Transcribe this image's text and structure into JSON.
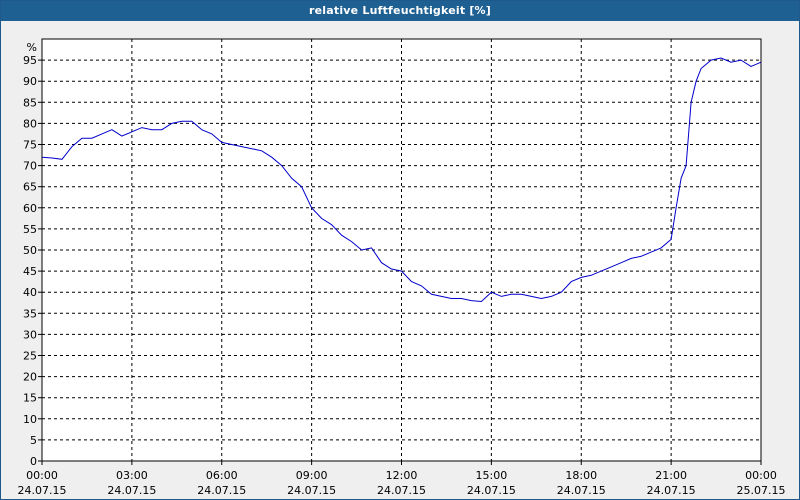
{
  "window": {
    "title": "relative Luftfeuchtigkeit [%]"
  },
  "chart_data": {
    "type": "line",
    "title": "relative Luftfeuchtigkeit [%]",
    "ylabel": "%",
    "xlabel": "",
    "ylim": [
      0,
      100
    ],
    "xlim_hours": [
      0,
      24
    ],
    "grid": true,
    "line_color": "#0000cc",
    "y_ticks": [
      "0",
      "5",
      "10",
      "15",
      "20",
      "25",
      "30",
      "35",
      "40",
      "45",
      "50",
      "55",
      "60",
      "65",
      "70",
      "75",
      "80",
      "85",
      "90",
      "95"
    ],
    "x_ticks": [
      {
        "time": "00:00",
        "date": "24.07.15"
      },
      {
        "time": "03:00",
        "date": "24.07.15"
      },
      {
        "time": "06:00",
        "date": "24.07.15"
      },
      {
        "time": "09:00",
        "date": "24.07.15"
      },
      {
        "time": "12:00",
        "date": "24.07.15"
      },
      {
        "time": "15:00",
        "date": "24.07.15"
      },
      {
        "time": "18:00",
        "date": "24.07.15"
      },
      {
        "time": "21:00",
        "date": "24.07.15"
      },
      {
        "time": "00:00",
        "date": "25.07.15"
      }
    ],
    "series": [
      {
        "x": [
          "00:00",
          "00:20",
          "00:40",
          "01:00",
          "01:20",
          "01:40",
          "02:00",
          "02:20",
          "02:40",
          "03:00",
          "03:20",
          "03:40",
          "04:00",
          "04:20",
          "04:40",
          "05:00",
          "05:20",
          "05:40",
          "06:00",
          "06:20",
          "06:40",
          "07:00",
          "07:20",
          "07:40",
          "08:00",
          "08:20",
          "08:40",
          "09:00",
          "09:20",
          "09:40",
          "10:00",
          "10:20",
          "10:40",
          "11:00",
          "11:20",
          "11:40",
          "12:00",
          "12:20",
          "12:40",
          "13:00",
          "13:20",
          "13:40",
          "14:00",
          "14:20",
          "14:40",
          "15:00",
          "15:20",
          "15:40",
          "16:00",
          "16:20",
          "16:40",
          "17:00",
          "17:20",
          "17:40",
          "18:00",
          "18:20",
          "18:40",
          "19:00",
          "19:20",
          "19:40",
          "20:00",
          "20:20",
          "20:40",
          "21:00",
          "21:10",
          "21:20",
          "21:30",
          "21:40",
          "21:50",
          "22:00",
          "22:20",
          "22:40",
          "23:00",
          "23:20",
          "23:40",
          "00:00"
        ],
        "values": [
          72,
          71.8,
          71.5,
          74.5,
          76.5,
          76.5,
          77.5,
          78.5,
          77,
          78,
          79,
          78.5,
          78.5,
          80,
          80.5,
          80.5,
          78.5,
          77.5,
          75.5,
          75,
          74.5,
          74,
          73.5,
          72,
          70,
          67,
          65,
          60,
          57.5,
          56,
          53.5,
          52,
          50,
          50.5,
          47,
          45.5,
          45,
          42.5,
          41.5,
          39.5,
          39,
          38.5,
          38.5,
          38,
          37.8,
          40,
          39,
          39.5,
          39.5,
          39,
          38.5,
          39,
          40,
          42.5,
          43.5,
          44,
          45,
          46,
          47,
          48,
          48.5,
          49.5,
          50.5,
          52.5,
          60,
          67,
          70,
          85,
          90,
          93,
          95,
          95.5,
          94.5,
          95,
          93.5,
          94.5
        ]
      }
    ]
  }
}
